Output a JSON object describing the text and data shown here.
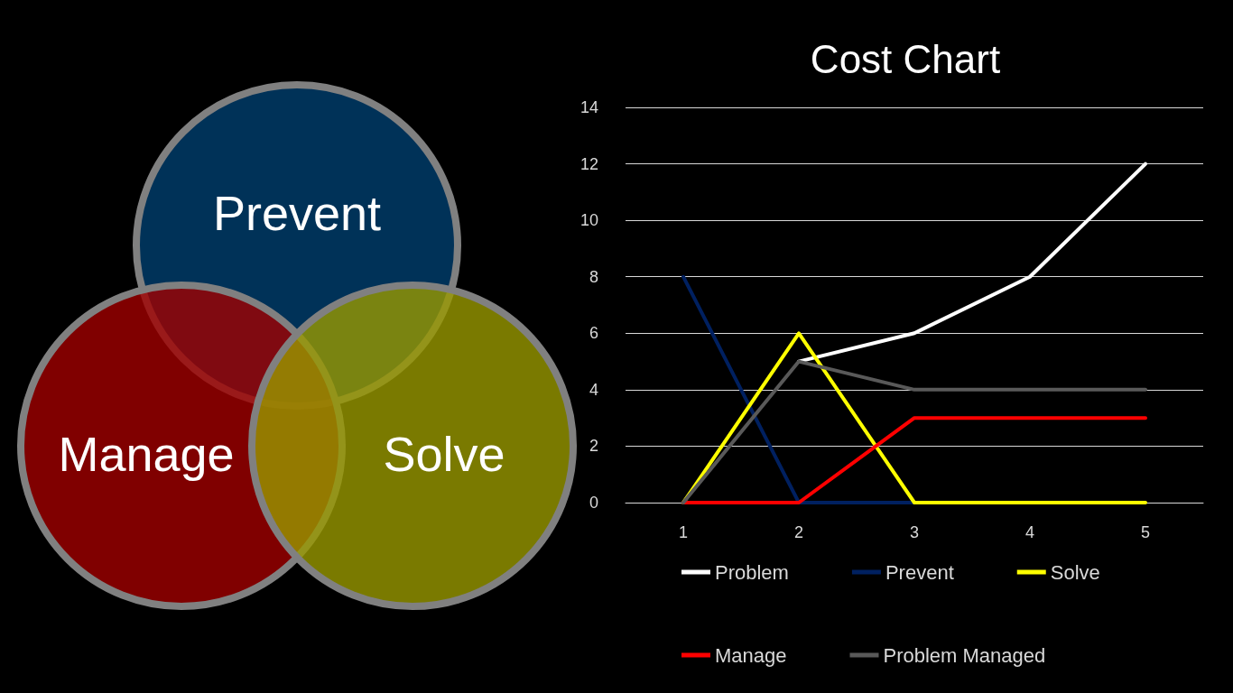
{
  "chart_data": [
    {
      "type": "other",
      "annotations": [
        "Prevent",
        "Manage",
        "Solve"
      ]
    },
    {
      "type": "line",
      "title": "Cost Chart",
      "categories": [
        "1",
        "2",
        "3",
        "4",
        "5"
      ],
      "series": [
        {
          "name": "Problem",
          "color": "#ffffff",
          "values": [
            null,
            5,
            6,
            8,
            12
          ]
        },
        {
          "name": "Prevent",
          "color": "#002060",
          "values": [
            8,
            0,
            0,
            null,
            null
          ]
        },
        {
          "name": "Solve",
          "color": "#ffff00",
          "values": [
            0,
            6,
            0,
            0,
            0
          ]
        },
        {
          "name": "Manage",
          "color": "#ff0000",
          "values": [
            0,
            0,
            3,
            3,
            3
          ]
        },
        {
          "name": "Problem Managed",
          "color": "#595959",
          "values": [
            0,
            5,
            4,
            4,
            4
          ]
        }
      ],
      "ylim": [
        0,
        14
      ],
      "yticks": [
        0,
        2,
        4,
        6,
        8,
        10,
        12,
        14
      ],
      "grid": "y",
      "legend": "bottom",
      "marker": "none",
      "line_style": "solid"
    }
  ]
}
